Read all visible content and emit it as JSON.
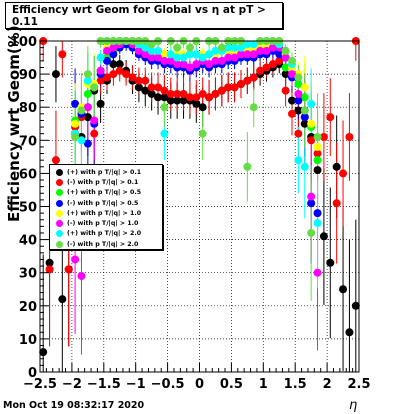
{
  "chart_data": {
    "type": "scatter",
    "title": "Efficiency wrt Geom for Global vs   η at pT > 0.11",
    "xlabel": "η",
    "ylabel": "Efficiency wrt Geom(%)",
    "xlim": [
      -2.5,
      2.5
    ],
    "ylim": [
      0,
      100
    ],
    "x_ticks": [
      "−2.5",
      "−2",
      "−1.5",
      "−1",
      "−0.5",
      "0",
      "0.5",
      "1",
      "1.5",
      "2",
      "2.5"
    ],
    "y_ticks": [
      "0",
      "10",
      "20",
      "30",
      "40",
      "50",
      "60",
      "70",
      "80",
      "90",
      "100"
    ],
    "grid": true,
    "legend_position": "middle-left",
    "series": [
      {
        "name": "(+) with p T/|q| > 0.1",
        "color": "#000000",
        "x": [
          -2.45,
          -2.35,
          -2.25,
          -2.15,
          -2.05,
          -1.95,
          -1.85,
          -1.75,
          -1.65,
          -1.55,
          -1.45,
          -1.35,
          -1.25,
          -1.15,
          -1.05,
          -0.95,
          -0.85,
          -0.75,
          -0.65,
          -0.55,
          -0.45,
          -0.35,
          -0.25,
          -0.15,
          -0.05,
          0.05,
          0.15,
          0.25,
          0.35,
          0.45,
          0.55,
          0.65,
          0.75,
          0.85,
          0.95,
          1.05,
          1.15,
          1.25,
          1.35,
          1.45,
          1.55,
          1.65,
          1.75,
          1.85,
          1.95,
          2.05,
          2.15,
          2.25,
          2.35,
          2.45
        ],
        "y": [
          6,
          33,
          90,
          22,
          31,
          72,
          71,
          77,
          85,
          81,
          88,
          93,
          93,
          91,
          88,
          86,
          85,
          84,
          83,
          83,
          82,
          82,
          82,
          82,
          81,
          80,
          83,
          84,
          85,
          86,
          86,
          87,
          88,
          89,
          90,
          91,
          92,
          93,
          90,
          82,
          79,
          75,
          71,
          61,
          41,
          33,
          62,
          25,
          12,
          20
        ]
      },
      {
        "name": "(-) with p T/|q| > 0.1",
        "color": "#ff0000",
        "x": [
          -2.45,
          -2.35,
          -2.25,
          -2.15,
          -2.05,
          -1.95,
          -1.85,
          -1.75,
          -1.65,
          -1.55,
          -1.45,
          -1.35,
          -1.25,
          -1.15,
          -1.05,
          -0.95,
          -0.85,
          -0.75,
          -0.65,
          -0.55,
          -0.45,
          -0.35,
          -0.25,
          -0.15,
          -0.05,
          0.05,
          0.15,
          0.25,
          0.35,
          0.45,
          0.55,
          0.65,
          0.75,
          0.85,
          0.95,
          1.05,
          1.15,
          1.25,
          1.35,
          1.45,
          1.55,
          1.65,
          1.75,
          1.85,
          1.95,
          2.05,
          2.15,
          2.25,
          2.35,
          2.45
        ],
        "y": [
          100,
          31,
          64,
          96,
          31,
          74,
          77,
          80,
          72,
          88,
          89,
          90,
          91,
          90,
          89,
          88,
          88,
          86,
          86,
          85,
          84,
          84,
          84,
          83,
          83,
          84,
          83,
          84,
          85,
          86,
          86,
          87,
          88,
          89,
          91,
          92,
          93,
          94,
          85,
          78,
          72,
          77,
          70,
          66,
          71,
          77,
          51,
          60,
          71,
          100
        ]
      },
      {
        "name": "(+) with p T/|q| > 0.5",
        "color": "#00ff00",
        "x": [
          -1.95,
          -1.85,
          -1.75,
          -1.65,
          -1.55,
          -1.45,
          -1.35,
          -1.25,
          -1.15,
          -1.05,
          -0.95,
          -0.85,
          -0.75,
          -0.65,
          -0.55,
          -0.45,
          -0.35,
          -0.25,
          -0.15,
          -0.05,
          0.05,
          0.15,
          0.25,
          0.35,
          0.45,
          0.55,
          0.65,
          0.75,
          0.85,
          0.95,
          1.05,
          1.15,
          1.25,
          1.35,
          1.45,
          1.55,
          1.65,
          1.75,
          1.85
        ],
        "y": [
          76,
          79,
          84,
          86,
          91,
          95,
          97,
          100,
          100,
          100,
          97,
          96,
          95,
          95,
          93,
          93,
          92,
          92,
          91,
          92,
          93,
          92,
          93,
          93,
          94,
          94,
          95,
          96,
          95,
          96,
          97,
          98,
          97,
          92,
          92,
          87,
          83,
          74,
          64
        ]
      },
      {
        "name": "(-) with p T/|q| > 0.5",
        "color": "#0000ff",
        "x": [
          -1.95,
          -1.85,
          -1.75,
          -1.65,
          -1.55,
          -1.45,
          -1.35,
          -1.25,
          -1.15,
          -1.05,
          -0.95,
          -0.85,
          -0.75,
          -0.65,
          -0.55,
          -0.45,
          -0.35,
          -0.25,
          -0.15,
          -0.05,
          0.05,
          0.15,
          0.25,
          0.35,
          0.45,
          0.55,
          0.65,
          0.75,
          0.85,
          0.95,
          1.05,
          1.15,
          1.25,
          1.35,
          1.45,
          1.55,
          1.65,
          1.75,
          1.85
        ],
        "y": [
          81,
          78,
          69,
          75,
          90,
          94,
          96,
          98,
          99,
          98,
          96,
          95,
          94,
          94,
          93,
          93,
          92,
          92,
          91,
          92,
          93,
          92,
          93,
          93,
          94,
          94,
          95,
          95,
          95,
          96,
          96,
          97,
          96,
          95,
          89,
          82,
          77,
          51,
          48
        ]
      },
      {
        "name": "(+) with p T/|q| > 1.0",
        "color": "#ffff00",
        "x": [
          -1.95,
          -1.85,
          -1.75,
          -1.65,
          -1.55,
          -1.45,
          -1.35,
          -1.25,
          -1.15,
          -1.05,
          -0.95,
          -0.85,
          -0.75,
          -0.65,
          -0.55,
          -0.45,
          -0.35,
          -0.25,
          -0.15,
          -0.05,
          0.05,
          0.15,
          0.25,
          0.35,
          0.45,
          0.55,
          0.65,
          0.75,
          0.85,
          0.95,
          1.05,
          1.15,
          1.25,
          1.35,
          1.45,
          1.55,
          1.65,
          1.75,
          1.85
        ],
        "y": [
          75,
          80,
          87,
          87,
          95,
          98,
          99,
          100,
          100,
          100,
          98,
          97,
          96,
          96,
          96,
          96,
          96,
          96,
          96,
          96,
          96,
          96,
          96,
          97,
          97,
          97,
          97,
          97,
          98,
          98,
          99,
          99,
          99,
          96,
          92,
          90,
          86,
          75,
          68
        ]
      },
      {
        "name": "(-) with p T/|q| > 1.0",
        "color": "#ff00ff",
        "x": [
          -1.95,
          -1.85,
          -1.75,
          -1.65,
          -1.55,
          -1.45,
          -1.35,
          -1.25,
          -1.15,
          -1.05,
          -0.95,
          -0.85,
          -0.75,
          -0.65,
          -0.55,
          -0.45,
          -0.35,
          -0.25,
          -0.15,
          -0.05,
          0.05,
          0.15,
          0.25,
          0.35,
          0.45,
          0.55,
          0.65,
          0.75,
          0.85,
          0.95,
          1.05,
          1.15,
          1.25,
          1.35,
          1.45,
          1.55,
          1.65,
          1.75,
          1.85
        ],
        "y": [
          34,
          29,
          80,
          76,
          91,
          97,
          98,
          99,
          100,
          99,
          97,
          96,
          95,
          95,
          94,
          94,
          93,
          93,
          92,
          93,
          94,
          93,
          94,
          94,
          95,
          95,
          96,
          96,
          96,
          97,
          97,
          98,
          98,
          95,
          90,
          84,
          79,
          53,
          30
        ]
      },
      {
        "name": "(+) with p T/|q| > 2.0",
        "color": "#00ffff",
        "x": [
          -1.95,
          -1.85,
          -1.75,
          -1.65,
          -1.55,
          -1.45,
          -1.35,
          -1.25,
          -1.15,
          -1.05,
          -0.95,
          -0.85,
          -0.75,
          -0.65,
          -0.55,
          -0.45,
          -0.35,
          -0.25,
          -0.15,
          -0.05,
          0.05,
          0.15,
          0.25,
          0.35,
          0.45,
          0.55,
          0.65,
          0.75,
          0.85,
          0.95,
          1.05,
          1.15,
          1.25,
          1.35,
          1.45,
          1.55,
          1.65,
          1.75,
          1.85
        ],
        "y": [
          72,
          70,
          88,
          86,
          95,
          100,
          100,
          100,
          100,
          100,
          99,
          98,
          97,
          97,
          72,
          96,
          95,
          95,
          96,
          96,
          95,
          96,
          97,
          97,
          98,
          98,
          98,
          99,
          99,
          100,
          100,
          100,
          99,
          97,
          93,
          64,
          62,
          81,
          45
        ]
      },
      {
        "name": "(-) with p T/|q| > 2.0",
        "color": "#66dd44",
        "x": [
          -1.95,
          -1.85,
          -1.75,
          -1.65,
          -1.55,
          -1.45,
          -1.35,
          -1.25,
          -1.15,
          -1.05,
          -0.95,
          -0.85,
          -0.75,
          -0.65,
          -0.55,
          -0.45,
          -0.35,
          -0.25,
          -0.15,
          -0.05,
          0.05,
          0.15,
          0.25,
          0.35,
          0.45,
          0.55,
          0.65,
          0.75,
          0.85,
          0.95,
          1.05,
          1.15,
          1.25,
          1.35,
          1.45,
          1.55,
          1.65,
          1.75,
          1.85
        ],
        "y": [
          71,
          79,
          90,
          86,
          100,
          100,
          100,
          100,
          100,
          100,
          100,
          100,
          99,
          100,
          80,
          100,
          98,
          100,
          98,
          100,
          72,
          100,
          100,
          98,
          100,
          100,
          100,
          62,
          80,
          100,
          100,
          100,
          100,
          97,
          94,
          89,
          79,
          42,
          71
        ]
      }
    ]
  },
  "page": {
    "title": "Efficiency wrt Geom for Global vs   η at pT > 0.11",
    "timestamp": "Mon Oct 19 08:32:17 2020",
    "xlabel": "η",
    "ylabel": "Efficiency wrt Geom(%)"
  }
}
